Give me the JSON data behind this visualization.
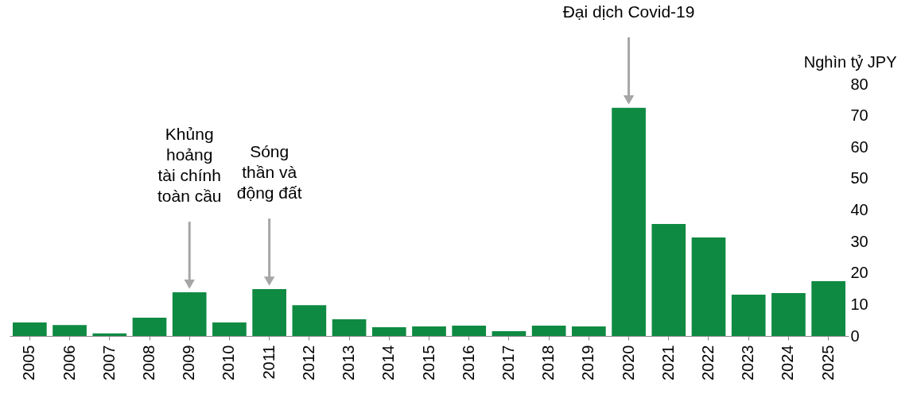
{
  "chart_data": {
    "type": "bar",
    "categories": [
      "2005",
      "2006",
      "2007",
      "2008",
      "2009",
      "2010",
      "2011",
      "2012",
      "2013",
      "2014",
      "2015",
      "2016",
      "2017",
      "2018",
      "2019",
      "2020",
      "2021",
      "2022",
      "2023",
      "2024",
      "2025"
    ],
    "values": [
      4.3,
      3.5,
      0.8,
      5.8,
      13.9,
      4.3,
      14.9,
      9.8,
      5.3,
      2.8,
      3.0,
      3.3,
      1.5,
      3.3,
      3.0,
      72.5,
      35.6,
      31.3,
      13.1,
      13.6,
      17.4
    ],
    "color": "#0f8a43",
    "ylabel": "Nghìn tỷ JPY",
    "ylim": [
      0,
      80
    ],
    "yticks": [
      0,
      10,
      20,
      30,
      40,
      50,
      60,
      70,
      80
    ],
    "grid": false,
    "annotations": [
      {
        "text": "Khủng\nhoảng\ntài chính\ntoàn cầu",
        "x": "2009",
        "y": 13.9
      },
      {
        "text": "Sóng\nthần và\nđộng đất",
        "x": "2011",
        "y": 14.9
      },
      {
        "text": "Đại dịch Covid-19",
        "x": "2020",
        "y": 72.5
      }
    ]
  }
}
